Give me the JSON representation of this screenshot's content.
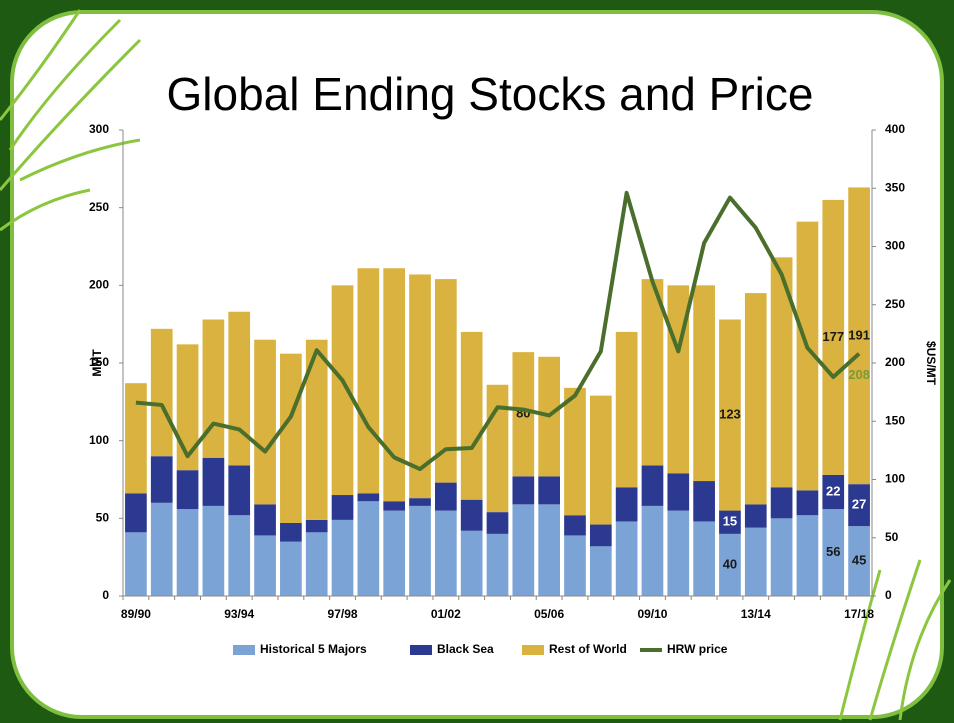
{
  "chart_data": {
    "type": "bar",
    "stacked": true,
    "title": "Global Ending Stocks and Price",
    "y_label": "MMT",
    "y2_label": "$US/MT",
    "categories": [
      "89/90",
      null,
      null,
      null,
      "93/94",
      null,
      null,
      null,
      "97/98",
      null,
      null,
      null,
      "01/02",
      null,
      null,
      null,
      "05/06",
      null,
      null,
      null,
      "09/10",
      null,
      null,
      null,
      "13/14",
      null,
      null,
      null,
      "17/18"
    ],
    "series": [
      {
        "name": "Historical 5 Majors",
        "color": "#7ba3d6",
        "type": "bar",
        "values": [
          41,
          60,
          56,
          58,
          52,
          39,
          35,
          41,
          49,
          61,
          55,
          58,
          55,
          42,
          40,
          59,
          59,
          39,
          32,
          48,
          58,
          55,
          48,
          40,
          44,
          50,
          52,
          56,
          45
        ],
        "value_labels": [
          null,
          null,
          null,
          null,
          null,
          null,
          null,
          null,
          null,
          null,
          null,
          null,
          null,
          null,
          null,
          null,
          null,
          null,
          null,
          null,
          null,
          null,
          null,
          "40",
          null,
          null,
          null,
          "56",
          "45"
        ]
      },
      {
        "name": "Black Sea",
        "color": "#2b3990",
        "type": "bar",
        "values": [
          25,
          30,
          25,
          31,
          32,
          20,
          12,
          8,
          16,
          5,
          6,
          5,
          18,
          20,
          14,
          18,
          18,
          13,
          14,
          22,
          26,
          24,
          26,
          15,
          15,
          20,
          16,
          22,
          27
        ],
        "value_labels": [
          null,
          null,
          null,
          null,
          null,
          null,
          null,
          null,
          null,
          null,
          null,
          null,
          null,
          null,
          null,
          null,
          null,
          null,
          null,
          null,
          null,
          null,
          null,
          "15",
          null,
          null,
          null,
          "22",
          "27"
        ]
      },
      {
        "name": "Rest of World",
        "color": "#d9b23f",
        "type": "bar",
        "values": [
          71,
          82,
          81,
          89,
          99,
          106,
          109,
          116,
          135,
          145,
          150,
          144,
          131,
          108,
          82,
          80,
          77,
          82,
          83,
          100,
          120,
          121,
          126,
          123,
          136,
          148,
          173,
          177,
          191
        ],
        "value_labels": [
          null,
          null,
          null,
          null,
          null,
          null,
          null,
          null,
          null,
          null,
          null,
          null,
          null,
          null,
          null,
          "80",
          null,
          null,
          null,
          null,
          null,
          null,
          null,
          "123",
          null,
          null,
          null,
          "177",
          "191"
        ]
      },
      {
        "name": "HRW price",
        "color": "#4a6e2b",
        "type": "line",
        "axis": "y2",
        "values": [
          166,
          164,
          120,
          148,
          143,
          124,
          154,
          211,
          185,
          145,
          119,
          109,
          126,
          127,
          162,
          160,
          155,
          172,
          210,
          346,
          270,
          210,
          303,
          342,
          316,
          276,
          213,
          188,
          208
        ],
        "value_labels": [
          null,
          null,
          null,
          null,
          null,
          null,
          null,
          null,
          null,
          null,
          null,
          null,
          null,
          null,
          null,
          null,
          null,
          null,
          null,
          null,
          null,
          null,
          null,
          null,
          null,
          null,
          null,
          null,
          "208"
        ]
      }
    ],
    "ylim": [
      0,
      300
    ],
    "yticks": [
      0,
      50,
      100,
      150,
      200,
      250,
      300
    ],
    "y2lim": [
      0,
      400
    ],
    "y2ticks": [
      0,
      50,
      100,
      150,
      200,
      250,
      300,
      350,
      400
    ],
    "legend": "bottom"
  }
}
